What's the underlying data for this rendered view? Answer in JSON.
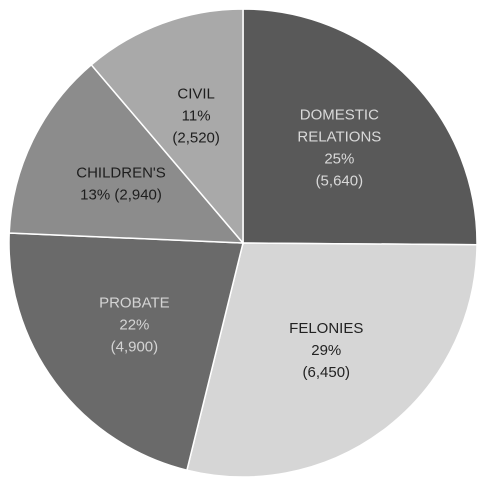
{
  "chart_data": {
    "type": "pie",
    "title": "",
    "start_angle_deg": 0,
    "direction": "clockwise",
    "slices": [
      {
        "name": "DOMESTIC RELATIONS",
        "percent_label": "25%",
        "count_label": "(5,640)",
        "value": 5640,
        "color": "#595959",
        "label_color": "#d9d9d9",
        "lines": [
          "DOMESTIC",
          "RELATIONS",
          "25%",
          "(5,640)"
        ]
      },
      {
        "name": "FELONIES",
        "percent_label": "29%",
        "count_label": "(6,450)",
        "value": 6450,
        "color": "#d6d6d6",
        "label_color": "#222222",
        "lines": [
          "FELONIES",
          "29%",
          "(6,450)"
        ]
      },
      {
        "name": "PROBATE",
        "percent_label": "22%",
        "count_label": "(4,900)",
        "value": 4900,
        "color": "#6a6a6a",
        "label_color": "#d4d4d4",
        "lines": [
          "PROBATE",
          "22%",
          "(4,900)"
        ]
      },
      {
        "name": "CHILDREN'S",
        "percent_label": "13%",
        "count_label": "(2,940)",
        "value": 2940,
        "color": "#8c8c8c",
        "label_color": "#1e1e1e",
        "lines": [
          "CHILDREN'S",
          "13% (2,940)"
        ]
      },
      {
        "name": "CIVIL",
        "percent_label": "11%",
        "count_label": "(2,520)",
        "value": 2520,
        "color": "#a9a9a9",
        "label_color": "#1e1e1e",
        "lines": [
          "CIVIL",
          "11%",
          "(2,520)"
        ]
      }
    ]
  }
}
